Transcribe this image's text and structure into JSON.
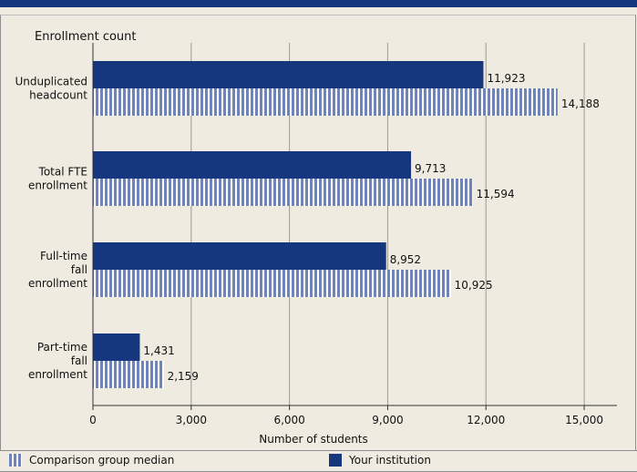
{
  "chart_data": {
    "type": "bar",
    "title": "Enrollment count",
    "xlabel": "Number of students",
    "ylabel": "",
    "xlim": [
      0,
      16000
    ],
    "xticks": [
      0,
      3000,
      6000,
      9000,
      12000,
      15000
    ],
    "xtick_labels": [
      "0",
      "3,000",
      "6,000",
      "9,000",
      "12,000",
      "15,000"
    ],
    "categories": [
      [
        "Unduplicated",
        "headcount"
      ],
      [
        "Total FTE",
        "enrollment"
      ],
      [
        "Full-time",
        "fall",
        "enrollment"
      ],
      [
        "Part-time",
        "fall",
        "enrollment"
      ]
    ],
    "series": [
      {
        "name": "Your institution",
        "values": [
          11923,
          9713,
          8952,
          1431
        ],
        "labels": [
          "11,923",
          "9,713",
          "8,952",
          "1,431"
        ]
      },
      {
        "name": "Comparison group median",
        "values": [
          14188,
          11594,
          10925,
          2159
        ],
        "labels": [
          "14,188",
          "11,594",
          "10,925",
          "2,159"
        ]
      }
    ],
    "grid": true,
    "legend_placement": "bottom"
  },
  "legend": {
    "comparison_label": "Comparison group median",
    "institution_label": "Your institution"
  },
  "colors": {
    "institution": "#16377e",
    "comparison": "#6f84bb",
    "background": "#efebe0",
    "grid": "#9a9a9a"
  }
}
